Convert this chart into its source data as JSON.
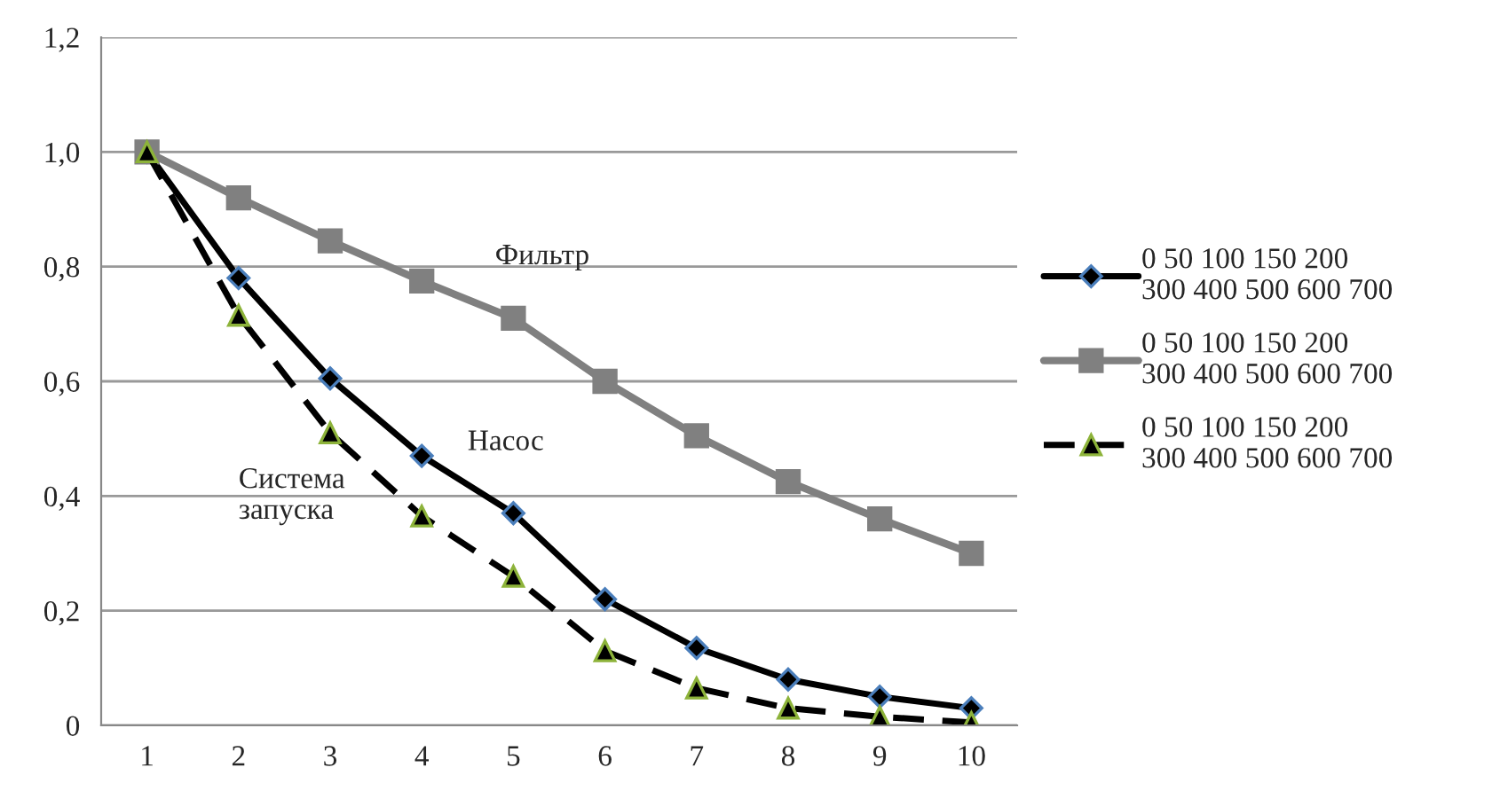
{
  "chart_data": {
    "type": "line",
    "categories": [
      "1",
      "2",
      "3",
      "4",
      "5",
      "6",
      "7",
      "8",
      "9",
      "10"
    ],
    "series": [
      {
        "name": "0 50 100 150 200\n300 400 500 600 700",
        "color": "#000000",
        "marker": "diamond",
        "line_style": "solid",
        "values": [
          1.0,
          0.78,
          0.605,
          0.47,
          0.37,
          0.22,
          0.135,
          0.08,
          0.05,
          0.03
        ]
      },
      {
        "name": "0 50 100 150 200\n300 400 500 600 700",
        "color": "#808080",
        "marker": "square",
        "line_style": "solid",
        "values": [
          1.0,
          0.92,
          0.845,
          0.775,
          0.71,
          0.6,
          0.505,
          0.425,
          0.36,
          0.3
        ]
      },
      {
        "name": "0 50 100 150 200\n300 400 500 600 700",
        "color": "#000000",
        "marker": "triangle",
        "line_style": "dashed",
        "values": [
          1.0,
          0.715,
          0.51,
          0.365,
          0.26,
          0.13,
          0.065,
          0.03,
          0.015,
          0.005
        ]
      }
    ],
    "ylim": [
      0,
      1.2
    ],
    "yticks": [
      {
        "value": 0,
        "label": "0"
      },
      {
        "value": 0.2,
        "label": "0,2"
      },
      {
        "value": 0.4,
        "label": "0,4"
      },
      {
        "value": 0.6,
        "label": "0,6"
      },
      {
        "value": 0.8,
        "label": "0,8"
      },
      {
        "value": 1.0,
        "label": "1,0"
      },
      {
        "value": 1.2,
        "label": "1,2"
      }
    ],
    "grid": "y",
    "legend": "right",
    "annotations": [
      "Фильтр",
      "Насос",
      "Система\nзапуска"
    ]
  }
}
